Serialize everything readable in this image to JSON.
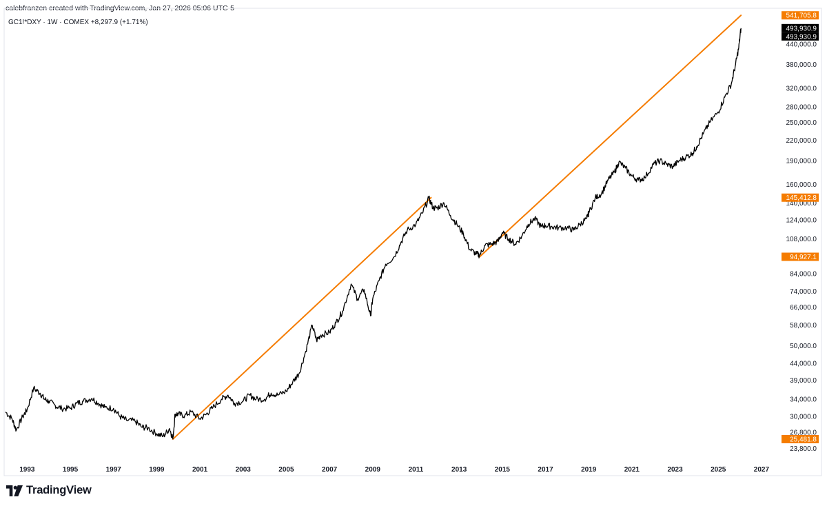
{
  "header": {
    "credit": "calebfranzen created with TradingView.com, Jan 27, 2026 05:06 UTC-5",
    "symbol_line": "GC1!*DXY · 1W · COMEX  +8,297.9 (+1.71%)"
  },
  "brand": {
    "name": "TradingView"
  },
  "chart_data": {
    "type": "line",
    "scale": "log",
    "grid": false,
    "ylim": [
      22500,
      570000
    ],
    "xlim": [
      1992.0,
      2027.8
    ],
    "y_ticks": [
      {
        "value": 23800,
        "label": "23,800.0"
      },
      {
        "value": 26800,
        "label": "26,800.0"
      },
      {
        "value": 30000,
        "label": "30,000.0"
      },
      {
        "value": 34000,
        "label": "34,000.0"
      },
      {
        "value": 39000,
        "label": "39,000.0"
      },
      {
        "value": 44000,
        "label": "44,000.0"
      },
      {
        "value": 50000,
        "label": "50,000.0"
      },
      {
        "value": 58000,
        "label": "58,000.0"
      },
      {
        "value": 66000,
        "label": "66,000.0"
      },
      {
        "value": 74000,
        "label": "74,000.0"
      },
      {
        "value": 84000,
        "label": "84,000.0"
      },
      {
        "value": 108000,
        "label": "108,000.0"
      },
      {
        "value": 124000,
        "label": "124,000.0"
      },
      {
        "value": 140000,
        "label": "140,000.0"
      },
      {
        "value": 160000,
        "label": "160,000.0"
      },
      {
        "value": 190000,
        "label": "190,000.0"
      },
      {
        "value": 220000,
        "label": "220,000.0"
      },
      {
        "value": 250000,
        "label": "250,000.0"
      },
      {
        "value": 280000,
        "label": "280,000.0"
      },
      {
        "value": 320000,
        "label": "320,000.0"
      },
      {
        "value": 380000,
        "label": "380,000.0"
      },
      {
        "value": 440000,
        "label": "440,000.0"
      }
    ],
    "x_ticks": [
      {
        "value": 1993,
        "label": "1993"
      },
      {
        "value": 1995,
        "label": "1995"
      },
      {
        "value": 1997,
        "label": "1997"
      },
      {
        "value": 1999,
        "label": "1999"
      },
      {
        "value": 2001,
        "label": "2001"
      },
      {
        "value": 2003,
        "label": "2003"
      },
      {
        "value": 2005,
        "label": "2005"
      },
      {
        "value": 2007,
        "label": "2007"
      },
      {
        "value": 2009,
        "label": "2009"
      },
      {
        "value": 2011,
        "label": "2011"
      },
      {
        "value": 2013,
        "label": "2013"
      },
      {
        "value": 2015,
        "label": "2015"
      },
      {
        "value": 2017,
        "label": "2017"
      },
      {
        "value": 2019,
        "label": "2019"
      },
      {
        "value": 2021,
        "label": "2021"
      },
      {
        "value": 2023,
        "label": "2023"
      },
      {
        "value": 2025,
        "label": "2025"
      },
      {
        "value": 2027,
        "label": "2027"
      }
    ],
    "price_badges": [
      {
        "value": 541705.8,
        "label": "541,705.8",
        "color": "#f57c00"
      },
      {
        "value": 493930.9,
        "label": "493,930.9",
        "color": "#000000"
      },
      {
        "value": 493930.9,
        "label": "493,930.9",
        "color": "#000000"
      },
      {
        "value": 145412.8,
        "label": "145,412.8",
        "color": "#f57c00"
      },
      {
        "value": 94927.1,
        "label": "94,927.1",
        "color": "#f57c00"
      },
      {
        "value": 25481.8,
        "label": "25,481.8",
        "color": "#f57c00"
      }
    ],
    "trendlines": [
      {
        "x1": 1999.75,
        "y1": 25481.8,
        "x2": 2011.7,
        "y2": 145412.8,
        "color": "#f57c00"
      },
      {
        "x1": 2013.95,
        "y1": 94927.1,
        "x2": 2026.05,
        "y2": 541705.8,
        "color": "#f57c00"
      }
    ],
    "series": [
      {
        "color": "#000000",
        "x": [
          1992.0,
          1992.3,
          1992.5,
          1992.8,
          1993.0,
          1993.3,
          1993.6,
          1993.8,
          1994.0,
          1994.3,
          1994.6,
          1995.0,
          1995.3,
          1995.6,
          1996.0,
          1996.3,
          1996.6,
          1997.0,
          1997.3,
          1997.6,
          1998.0,
          1998.3,
          1998.6,
          1999.0,
          1999.3,
          1999.6,
          1999.75,
          1999.85,
          2000.0,
          2000.3,
          2000.6,
          2001.0,
          2001.3,
          2001.6,
          2002.0,
          2002.3,
          2002.6,
          2003.0,
          2003.3,
          2003.6,
          2004.0,
          2004.3,
          2004.6,
          2005.0,
          2005.3,
          2005.6,
          2005.9,
          2006.2,
          2006.4,
          2006.6,
          2007.0,
          2007.3,
          2007.6,
          2008.0,
          2008.3,
          2008.6,
          2008.9,
          2009.0,
          2009.3,
          2009.6,
          2010.0,
          2010.3,
          2010.6,
          2011.0,
          2011.3,
          2011.6,
          2011.8,
          2012.0,
          2012.3,
          2012.6,
          2012.9,
          2013.2,
          2013.5,
          2013.8,
          2013.95,
          2014.2,
          2014.5,
          2014.8,
          2015.0,
          2015.3,
          2015.6,
          2015.9,
          2016.2,
          2016.5,
          2016.8,
          2017.0,
          2017.3,
          2017.6,
          2018.0,
          2018.3,
          2018.6,
          2018.9,
          2019.0,
          2019.3,
          2019.6,
          2019.9,
          2020.2,
          2020.4,
          2020.7,
          2021.0,
          2021.3,
          2021.6,
          2022.0,
          2022.3,
          2022.6,
          2022.9,
          2023.2,
          2023.5,
          2023.8,
          2024.0,
          2024.3,
          2024.6,
          2025.0,
          2025.3,
          2025.6,
          2025.8,
          2025.95,
          2026.05
        ],
        "values": [
          31000,
          29500,
          27200,
          30000,
          31500,
          36800,
          35500,
          34000,
          33500,
          32500,
          31800,
          31800,
          33000,
          33500,
          34200,
          33000,
          32000,
          31800,
          30000,
          29200,
          29000,
          27800,
          27600,
          26500,
          26000,
          27500,
          25500,
          30500,
          30500,
          30200,
          31000,
          29500,
          30500,
          32000,
          34000,
          35000,
          33000,
          33500,
          35000,
          34000,
          34000,
          35500,
          35000,
          36000,
          38500,
          41000,
          48000,
          58000,
          52000,
          54000,
          55000,
          59000,
          64000,
          78000,
          70000,
          75000,
          62000,
          70000,
          80000,
          90000,
          95000,
          105000,
          115000,
          120000,
          130000,
          145000,
          135000,
          135000,
          140000,
          128000,
          120000,
          112000,
          100000,
          97000,
          96000,
          103000,
          104000,
          106000,
          113000,
          108000,
          104000,
          110000,
          120000,
          125000,
          118000,
          119000,
          118000,
          117000,
          117000,
          115000,
          120000,
          125000,
          130000,
          145000,
          150000,
          165000,
          175000,
          188000,
          180000,
          170000,
          165000,
          168000,
          185000,
          190000,
          185000,
          182000,
          190000,
          195000,
          200000,
          210000,
          230000,
          250000,
          270000,
          300000,
          330000,
          380000,
          430000,
          493930.9
        ]
      }
    ]
  }
}
